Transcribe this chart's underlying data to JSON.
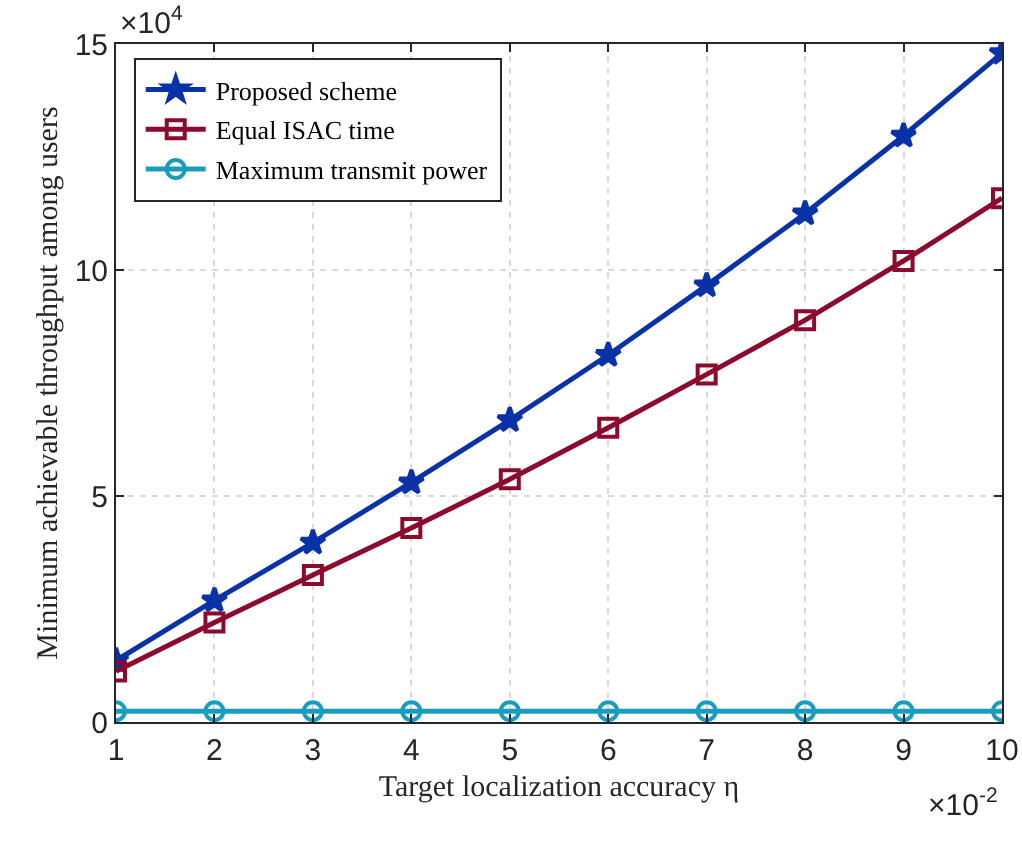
{
  "chart_data": {
    "type": "line",
    "xlabel": "Target localization accuracy η",
    "ylabel": "Minimum achievable throughput among users",
    "x": [
      1,
      2,
      3,
      4,
      5,
      6,
      7,
      8,
      9,
      10
    ],
    "series": [
      {
        "name": "Proposed scheme",
        "color": "#0a32a8",
        "marker": "star",
        "values": [
          1.36,
          2.69,
          3.97,
          5.3,
          6.68,
          8.12,
          9.66,
          11.25,
          12.97,
          14.8
        ]
      },
      {
        "name": "Equal ISAC time",
        "color": "#8b0a2e",
        "marker": "square",
        "values": [
          1.12,
          2.2,
          3.25,
          4.29,
          5.37,
          6.51,
          7.69,
          8.89,
          10.2,
          11.59
        ]
      },
      {
        "name": "Maximum transmit power",
        "color": "#1a9cbf",
        "marker": "circle",
        "values": [
          0.24,
          0.24,
          0.24,
          0.24,
          0.24,
          0.24,
          0.24,
          0.24,
          0.24,
          0.24
        ]
      }
    ],
    "annotations": [
      "×10$^{4}$",
      "×10$^{-2}$"
    ],
    "xlim": [
      1,
      10
    ],
    "xticks": [
      1,
      2,
      3,
      4,
      5,
      6,
      7,
      8,
      9,
      10
    ],
    "ylim": [
      0,
      15
    ],
    "yticks": [
      0,
      5,
      10,
      15
    ],
    "grid": true,
    "legend": "top left",
    "line_style": "solid"
  }
}
